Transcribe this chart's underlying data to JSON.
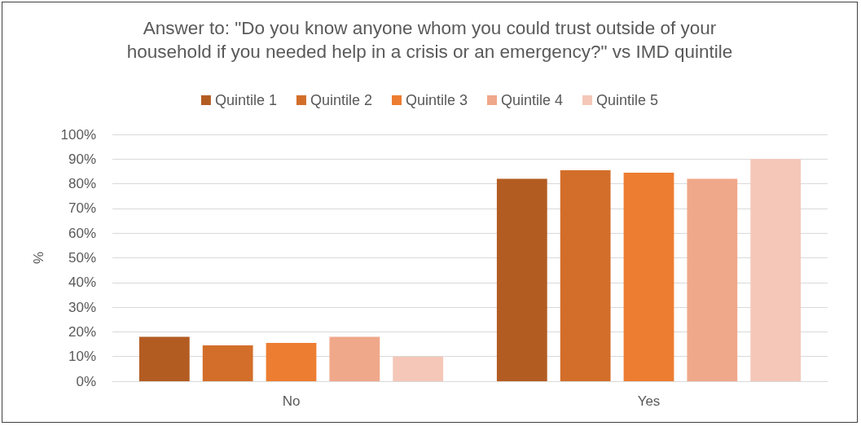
{
  "chart_data": {
    "type": "bar",
    "title": "Answer to: \"Do you know anyone whom you could trust outside of your\nhousehold if you needed help in a crisis or an emergency?\" vs IMD quintile",
    "ylabel": "%",
    "categories": [
      "No",
      "Yes"
    ],
    "series": [
      {
        "name": "Quintile 1",
        "color": "#b35c22",
        "values": [
          18,
          82
        ]
      },
      {
        "name": "Quintile 2",
        "color": "#d26e2a",
        "values": [
          14.5,
          85.5
        ]
      },
      {
        "name": "Quintile 3",
        "color": "#ed7d31",
        "values": [
          15.5,
          84.5
        ]
      },
      {
        "name": "Quintile 4",
        "color": "#f0a88a",
        "values": [
          18,
          82
        ]
      },
      {
        "name": "Quintile 5",
        "color": "#f4c7b8",
        "values": [
          10,
          90
        ]
      }
    ],
    "ylim": [
      0,
      100
    ],
    "yticks": [
      {
        "value": 0,
        "label": "0%"
      },
      {
        "value": 10,
        "label": "10%"
      },
      {
        "value": 20,
        "label": "20%"
      },
      {
        "value": 30,
        "label": "30%"
      },
      {
        "value": 40,
        "label": "40%"
      },
      {
        "value": 50,
        "label": "50%"
      },
      {
        "value": 60,
        "label": "60%"
      },
      {
        "value": 70,
        "label": "70%"
      },
      {
        "value": 80,
        "label": "80%"
      },
      {
        "value": 90,
        "label": "90%"
      },
      {
        "value": 100,
        "label": "100%"
      }
    ],
    "grid": "y",
    "legend": "top"
  }
}
